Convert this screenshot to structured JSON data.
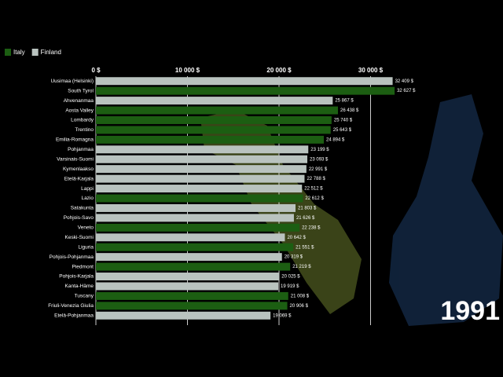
{
  "chart_data": {
    "type": "bar",
    "orientation": "horizontal",
    "annotation": "1991",
    "categories": [
      "Uusimaa (Helsinki)",
      "South Tyrol",
      "Ahvenanmaa",
      "Aosta Valley",
      "Lombardy",
      "Trentino",
      "Emilia-Romagna",
      "Pohjanmaa",
      "Varsinais-Suomi",
      "Kymenlaakso",
      "Etelä-Karjala",
      "Lappi",
      "Lazio",
      "Satakunta",
      "Pohjois-Savo",
      "Veneto",
      "Keski-Suomi",
      "Liguria",
      "Pohjois-Pohjanmaa",
      "Piedmont",
      "Pohjois-Karjala",
      "Kanta-Häme",
      "Tuscany",
      "Friuli-Venezia Giulia",
      "Etelä-Pohjanmaa"
    ],
    "series": [
      {
        "name": "Italy",
        "color": "#1c5e12",
        "values": [
          null,
          32627,
          null,
          26438,
          25740,
          25643,
          24894,
          null,
          null,
          null,
          null,
          null,
          22612,
          null,
          null,
          22238,
          null,
          21551,
          null,
          21219,
          null,
          null,
          21008,
          20906,
          null
        ],
        "value_labels": [
          null,
          "32 627 $",
          null,
          "26 438 $",
          "25 740 $",
          "25 643 $",
          "24 894 $",
          null,
          null,
          null,
          null,
          null,
          "22 612 $",
          null,
          null,
          "22 238 $",
          null,
          "21 551 $",
          null,
          "21 219 $",
          null,
          null,
          "21 008 $",
          "20 906 $",
          null
        ]
      },
      {
        "name": "Finland",
        "color": "#b9c3bf",
        "values": [
          32409,
          null,
          25867,
          null,
          null,
          null,
          null,
          23199,
          23093,
          22991,
          22788,
          22512,
          null,
          21803,
          21626,
          null,
          20642,
          null,
          20319,
          null,
          20025,
          19919,
          null,
          null,
          19069
        ],
        "value_labels": [
          "32 409 $",
          null,
          "25 867 $",
          null,
          null,
          null,
          null,
          "23 199 $",
          "23 093 $",
          "22 991 $",
          "22 788 $",
          "22 512 $",
          null,
          "21 803 $",
          "21 626 $",
          null,
          "20 642 $",
          null,
          "20 319 $",
          null,
          "20 025 $",
          "19 919 $",
          null,
          null,
          "19 069 $"
        ]
      }
    ],
    "xlim": [
      0,
      40000
    ],
    "xticks": [
      {
        "value": 0,
        "label": "0 $"
      },
      {
        "value": 10000,
        "label": "10 000 $"
      },
      {
        "value": 20000,
        "label": "20 000 $"
      },
      {
        "value": 30000,
        "label": "30 000 $"
      }
    ],
    "grid": true,
    "legend": "top-left"
  }
}
